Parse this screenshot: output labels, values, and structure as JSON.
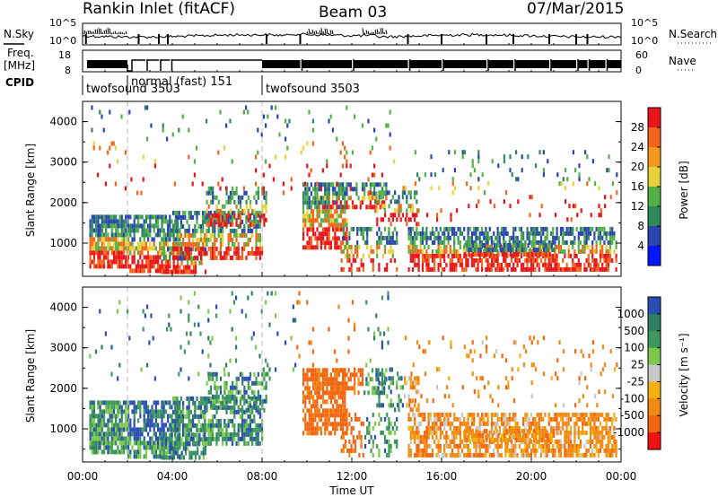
{
  "header": {
    "station": "Rankin Inlet (fitACF)",
    "beam": "Beam 03",
    "date": "07/Mar/2015"
  },
  "noise_panel": {
    "left_label": "N.Sky",
    "right_label": "N.Search",
    "left_ticks": [
      "10^5",
      "10^0"
    ],
    "right_ticks": [
      "10^5",
      "10^0"
    ]
  },
  "freq_panel": {
    "left_label_1": "Freq.",
    "left_label_2": "[MHz]",
    "right_label": "Nave",
    "left_ticks": [
      "18",
      "8"
    ],
    "right_ticks": [
      "60",
      "0"
    ]
  },
  "cpid": {
    "label": "CPID",
    "segments": [
      {
        "start_hour": 0.0,
        "text": "twofsound 3503"
      },
      {
        "start_hour": 2.0,
        "text": "normal (fast) 151"
      },
      {
        "start_hour": 8.0,
        "text": "twofsound 3503"
      }
    ]
  },
  "x_axis": {
    "label": "Time UT",
    "ticks": [
      "00:00",
      "04:00",
      "08:00",
      "12:00",
      "16:00",
      "20:00",
      "00:00"
    ],
    "range_hours": [
      0,
      24
    ]
  },
  "colors": {
    "power_scale": [
      "#0018ff",
      "#2a45b0",
      "#2e8a5a",
      "#52b046",
      "#e8d23a",
      "#f39a1c",
      "#f2661b",
      "#e8161b"
    ],
    "velocity_scale": [
      "#f21212",
      "#f26612",
      "#f38b12",
      "#f5b010",
      "#c8c8c8",
      "#7cc94b",
      "#3c9a5a",
      "#2d7f64",
      "#2b4fb0"
    ]
  },
  "chart_data": [
    {
      "type": "heatmap",
      "title": "",
      "xlabel": "Time UT",
      "ylabel": "Slant Range [km]",
      "xlim_hours": [
        0,
        24
      ],
      "ylim": [
        180,
        4500
      ],
      "y_ticks": [
        1000,
        2000,
        3000,
        4000
      ],
      "colorbar": {
        "label": "Power [dB]",
        "range": [
          0,
          30
        ],
        "tick_labels": [
          "28",
          "24",
          "20",
          "16",
          "12",
          "8",
          "4"
        ],
        "tick_values": [
          28,
          24,
          20,
          16,
          12,
          8,
          4
        ]
      }
    },
    {
      "type": "heatmap",
      "title": "",
      "xlabel": "Time UT",
      "ylabel": "Slant Range [km]",
      "xlim_hours": [
        0,
        24
      ],
      "ylim": [
        180,
        4500
      ],
      "y_ticks": [
        1000,
        2000,
        3000,
        4000
      ],
      "colorbar": {
        "label": "Velocity [m s⁻¹]",
        "tick_labels": [
          "1000",
          "500",
          "100",
          "25",
          "-25",
          "-100",
          "-500",
          "-1000"
        ]
      }
    }
  ]
}
